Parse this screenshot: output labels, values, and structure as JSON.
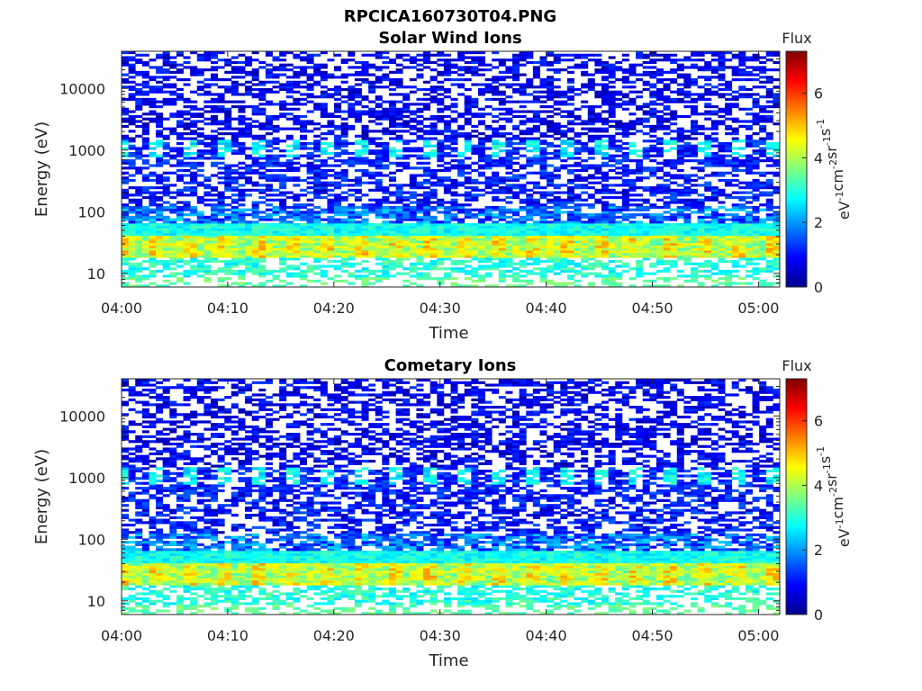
{
  "figure": {
    "title": "RPCICA160730T04.PNG"
  },
  "chart_data": [
    {
      "type": "heatmap",
      "title": "Solar Wind Ions",
      "xlabel": "Time",
      "ylabel": "Energy (eV)",
      "x_ticks": [
        "04:00",
        "04:10",
        "04:20",
        "04:30",
        "04:40",
        "04:50",
        "05:00"
      ],
      "x_range": [
        "04:00",
        "05:02"
      ],
      "y_scale": "log",
      "y_ticks": [
        "10",
        "100",
        "1000",
        "10000"
      ],
      "y_range": [
        6,
        40000
      ],
      "colorbar": {
        "title": "Flux",
        "label": "eV-1cm-2sr-1s-1",
        "label_parts": [
          {
            "base": "eV",
            "sup": "-1"
          },
          {
            "base": "cm",
            "sup": "-2"
          },
          {
            "base": "sr",
            "sup": "-1"
          },
          {
            "base": "s",
            "sup": "-1"
          }
        ],
        "ticks": [
          "0",
          "2",
          "4",
          "6"
        ],
        "range": [
          0,
          7.3
        ],
        "colormap": "jet"
      },
      "grid": false
    },
    {
      "type": "heatmap",
      "title": "Cometary Ions",
      "xlabel": "Time",
      "ylabel": "Energy (eV)",
      "x_ticks": [
        "04:00",
        "04:10",
        "04:20",
        "04:30",
        "04:40",
        "04:50",
        "05:00"
      ],
      "x_range": [
        "04:00",
        "05:02"
      ],
      "y_scale": "log",
      "y_ticks": [
        "10",
        "100",
        "1000",
        "10000"
      ],
      "y_range": [
        6,
        40000
      ],
      "colorbar": {
        "title": "Flux",
        "label": "eV-1cm-2sr-1s-1",
        "label_parts": [
          {
            "base": "eV",
            "sup": "-1"
          },
          {
            "base": "cm",
            "sup": "-2"
          },
          {
            "base": "sr",
            "sup": "-1"
          },
          {
            "base": "s",
            "sup": "-1"
          }
        ],
        "ticks": [
          "0",
          "2",
          "4",
          "6"
        ],
        "range": [
          0,
          7.3
        ],
        "colormap": "jet"
      },
      "grid": false
    }
  ]
}
